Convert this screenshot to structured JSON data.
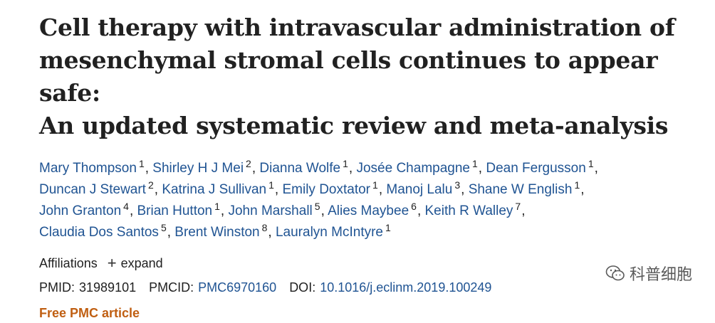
{
  "article": {
    "title_lines": [
      "Cell therapy with intravascular administration of",
      "mesenchymal stromal cells continues to appear safe:",
      "An updated systematic review and meta-analysis"
    ],
    "authors": [
      {
        "name": "Mary Thompson",
        "sup": "1"
      },
      {
        "name": "Shirley H J Mei",
        "sup": "2"
      },
      {
        "name": "Dianna Wolfe",
        "sup": "1"
      },
      {
        "name": "Josée Champagne",
        "sup": "1"
      },
      {
        "name": "Dean Fergusson",
        "sup": "1"
      },
      {
        "name": "Duncan J Stewart",
        "sup": "2"
      },
      {
        "name": "Katrina J Sullivan",
        "sup": "1"
      },
      {
        "name": "Emily Doxtator",
        "sup": "1"
      },
      {
        "name": "Manoj Lalu",
        "sup": "3"
      },
      {
        "name": "Shane W English",
        "sup": "1"
      },
      {
        "name": "John Granton",
        "sup": "4"
      },
      {
        "name": "Brian Hutton",
        "sup": "1"
      },
      {
        "name": "John Marshall",
        "sup": "5"
      },
      {
        "name": "Alies Maybee",
        "sup": "6"
      },
      {
        "name": "Keith R Walley",
        "sup": "7"
      },
      {
        "name": "Claudia Dos Santos",
        "sup": "5"
      },
      {
        "name": "Brent Winston",
        "sup": "8"
      },
      {
        "name": "Lauralyn McIntyre",
        "sup": "1"
      }
    ],
    "affiliations": {
      "label": "Affiliations",
      "expand_label": "expand"
    },
    "ids": {
      "pmid_label": "PMID:",
      "pmid": "31989101",
      "pmcid_label": "PMCID:",
      "pmcid": "PMC6970160",
      "doi_label": "DOI:",
      "doi": "10.1016/j.eclinm.2019.100249"
    },
    "free_label": "Free PMC article"
  },
  "watermark": {
    "text": "科普细胞",
    "icon": "wechat-icon"
  },
  "colors": {
    "link": "#205493",
    "text": "#212121",
    "free": "#c05f12"
  }
}
